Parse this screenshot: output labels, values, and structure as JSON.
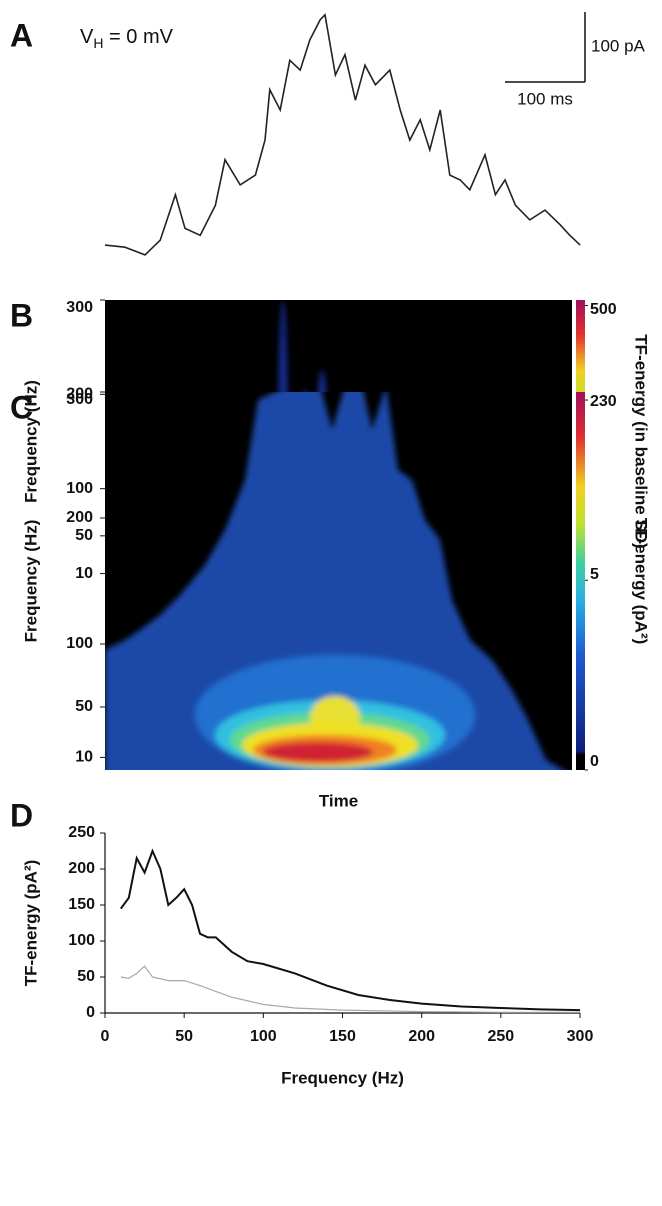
{
  "chart_data": [
    {
      "type": "trace",
      "panel": "A",
      "annotation_main": "V",
      "annotation_sub": "H",
      "annotation_rest": " = 0 mV",
      "scale_x": 100,
      "scale_x_label": "100 ms",
      "scale_y": 100,
      "scale_y_label": "100 pA",
      "color": "#222222",
      "x": [
        0,
        25,
        50,
        69,
        88,
        100,
        119,
        138,
        150,
        169,
        188,
        200,
        206,
        219,
        231,
        244,
        256,
        269,
        275,
        288,
        300,
        313,
        325,
        338,
        356,
        369,
        381,
        394,
        406,
        419,
        431,
        444,
        456,
        475,
        488,
        500,
        513,
        531,
        550,
        569,
        581,
        594
      ],
      "values": [
        7,
        4,
        -7,
        14,
        79,
        31,
        21,
        64,
        129,
        93,
        107,
        157,
        229,
        200,
        271,
        257,
        300,
        329,
        336,
        250,
        279,
        214,
        264,
        236,
        257,
        200,
        157,
        186,
        143,
        200,
        107,
        100,
        86,
        136,
        79,
        100,
        64,
        43,
        57,
        36,
        21,
        7
      ]
    },
    {
      "type": "heatmap",
      "panel": "B",
      "y_label": "Frequency (Hz)",
      "ylim": [
        0,
        300
      ],
      "yticks": [
        10,
        50,
        100,
        200,
        300
      ],
      "colorbar_label": "TF-energy (in baseline SD)",
      "clim": [
        0,
        510
      ],
      "colorbar_ticks": [
        5,
        500
      ]
    },
    {
      "type": "heatmap",
      "panel": "C",
      "y_label": "Frequency (Hz)",
      "x_label": "Time",
      "ylim": [
        0,
        300
      ],
      "yticks": [
        10,
        50,
        100,
        200,
        300
      ],
      "colorbar_label": "TF-energy (pA²)",
      "clim": [
        0,
        235
      ],
      "colorbar_ticks": [
        0,
        230
      ]
    },
    {
      "type": "line",
      "panel": "D",
      "y_label": "TF-energy (pA²)",
      "x_label": "Frequency (Hz)",
      "xlim": [
        0,
        300
      ],
      "ylim": [
        0,
        250
      ],
      "xticks": [
        0,
        50,
        100,
        150,
        200,
        250,
        300
      ],
      "yticks": [
        0,
        50,
        100,
        150,
        200,
        250
      ],
      "series": [
        {
          "color": "#111111",
          "x": [
            10,
            15,
            20,
            25,
            30,
            35,
            40,
            45,
            50,
            55,
            60,
            65,
            70,
            80,
            90,
            100,
            120,
            140,
            160,
            180,
            200,
            225,
            250,
            275,
            300
          ],
          "values": [
            145,
            160,
            215,
            195,
            225,
            200,
            150,
            160,
            172,
            150,
            110,
            105,
            105,
            85,
            72,
            68,
            55,
            38,
            25,
            18,
            13,
            9,
            7,
            5,
            4
          ]
        },
        {
          "color": "#a8a8a8",
          "x": [
            10,
            15,
            20,
            25,
            30,
            40,
            50,
            60,
            70,
            80,
            100,
            120,
            150,
            200,
            250,
            300
          ],
          "values": [
            50,
            48,
            55,
            65,
            50,
            45,
            45,
            38,
            30,
            22,
            12,
            7,
            4,
            2,
            1,
            1
          ]
        }
      ]
    }
  ]
}
